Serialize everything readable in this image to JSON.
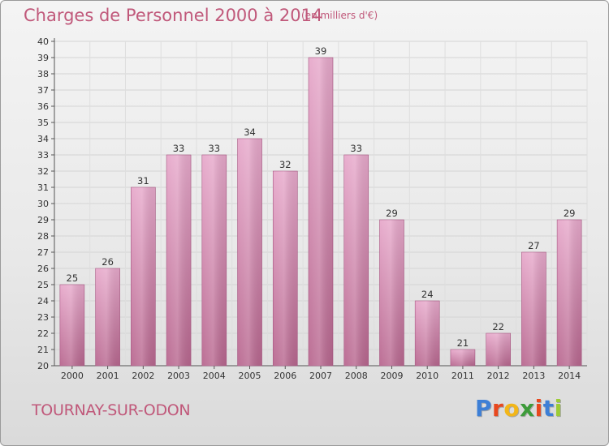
{
  "title": "Charges de Personnel 2000 à 2014",
  "subtitle": "(en milliers d'€)",
  "city": "TOURNAY-SUR-ODON",
  "brand": {
    "letters": [
      "P",
      "r",
      "o",
      "x",
      "i",
      "t",
      "i"
    ],
    "colors": [
      "#3d7fd6",
      "#e8481e",
      "#f2b619",
      "#3d9b3a",
      "#e8481e",
      "#3d7fd6",
      "#9ccc35"
    ]
  },
  "colors": {
    "bar": "#d68ab0",
    "title": "#c0587a"
  },
  "chart_data": {
    "type": "bar",
    "categories": [
      "2000",
      "2001",
      "2002",
      "2003",
      "2004",
      "2005",
      "2006",
      "2007",
      "2008",
      "2009",
      "2010",
      "2011",
      "2012",
      "2013",
      "2014"
    ],
    "values": [
      25,
      26,
      31,
      33,
      33,
      34,
      32,
      39,
      33,
      29,
      24,
      21,
      22,
      27,
      29
    ],
    "title": "Charges de Personnel 2000 à 2014",
    "subtitle": "(en milliers d'€)",
    "xlabel": "",
    "ylabel": "",
    "ylim": [
      20,
      40
    ],
    "yticks": [
      20,
      21,
      22,
      23,
      24,
      25,
      26,
      27,
      28,
      29,
      30,
      31,
      32,
      33,
      34,
      35,
      36,
      37,
      38,
      39,
      40
    ],
    "grid": true,
    "data_labels": true
  }
}
